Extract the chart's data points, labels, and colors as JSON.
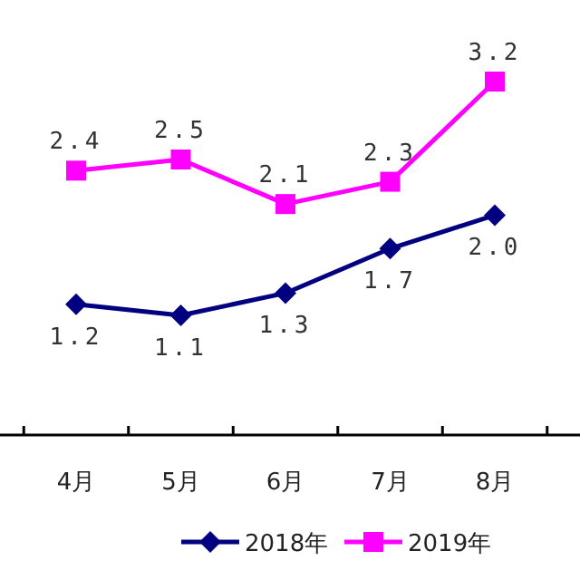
{
  "chart_data": {
    "type": "line",
    "categories": [
      "4月",
      "5月",
      "6月",
      "7月",
      "8月"
    ],
    "series": [
      {
        "name": "2018年",
        "color": "#000080",
        "marker": "diamond",
        "values": [
          1.2,
          1.1,
          1.3,
          1.7,
          2.0
        ],
        "value_labels": [
          "1.2",
          "1.1",
          "1.3",
          "1.7",
          "2.0"
        ]
      },
      {
        "name": "2019年",
        "color": "#ff00ff",
        "marker": "square",
        "values": [
          2.4,
          2.5,
          2.1,
          2.3,
          3.2
        ],
        "value_labels": [
          "2.4",
          "2.5",
          "2.1",
          "2.3",
          "3.2"
        ]
      }
    ],
    "legend": "bottom",
    "grid": false,
    "line_style": "solid"
  }
}
